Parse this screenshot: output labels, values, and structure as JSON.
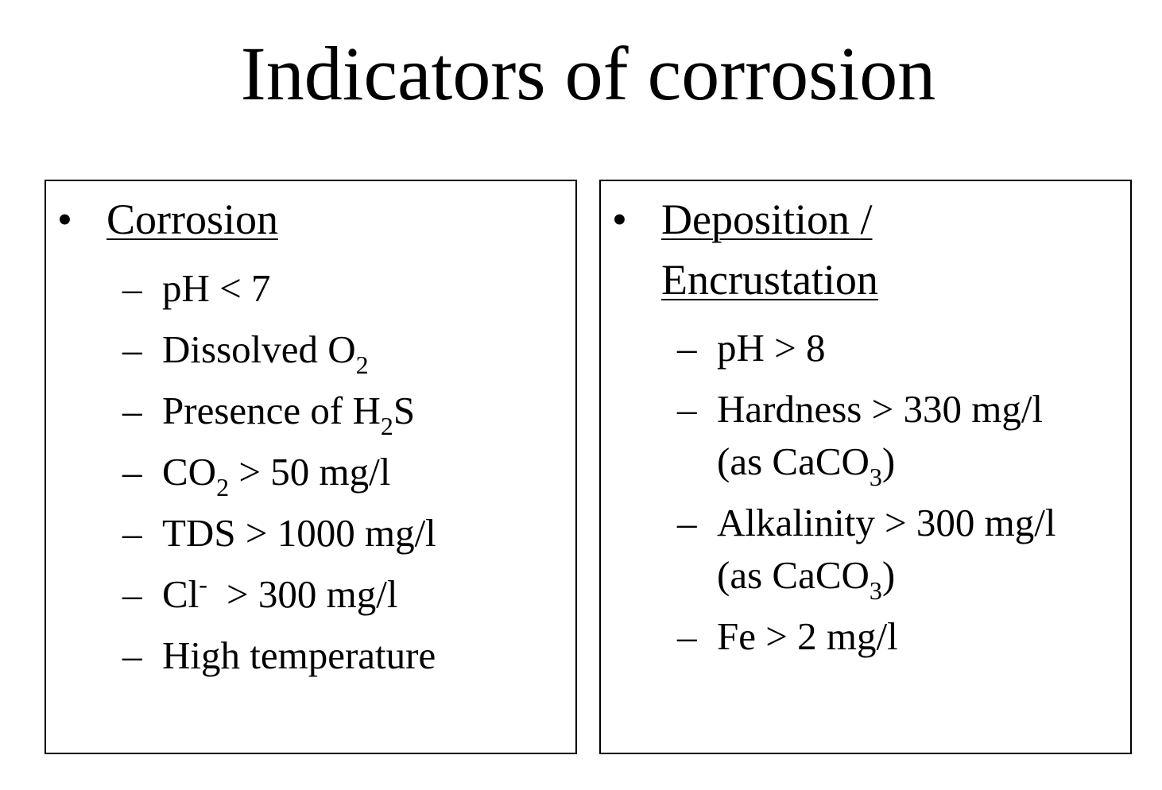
{
  "title": "Indicators of corrosion",
  "left": {
    "bullet": "•",
    "heading": "Corrosion",
    "dash": "–",
    "items": {
      "ph": "pH < 7",
      "dissolved": "Dissolved O",
      "dissolved_sub": "2",
      "h2s_a": "Presence of H",
      "h2s_sub": "2",
      "h2s_b": "S",
      "co2_a": "CO",
      "co2_sub": "2",
      "co2_b": " > 50 mg/l",
      "tds": "TDS > 1000 mg/l",
      "cl_a": "Cl",
      "cl_sup": "-",
      "cl_b": "> 300 mg/l",
      "temp": "High temperature"
    }
  },
  "right": {
    "bullet": "•",
    "heading_line1": "Deposition /",
    "heading_line2": "Encrustation",
    "dash": "–",
    "items": {
      "ph": "pH > 8",
      "hardness_line1": "Hardness > 330 mg/l",
      "hardness_line2_a": "(as CaCO",
      "hardness_line2_sub": "3",
      "hardness_line2_b": ")",
      "alk_line1": "Alkalinity > 300 mg/l",
      "alk_line2_a": "(as CaCO",
      "alk_line2_sub": "3",
      "alk_line2_b": ")",
      "fe": "Fe > 2 mg/l"
    }
  }
}
